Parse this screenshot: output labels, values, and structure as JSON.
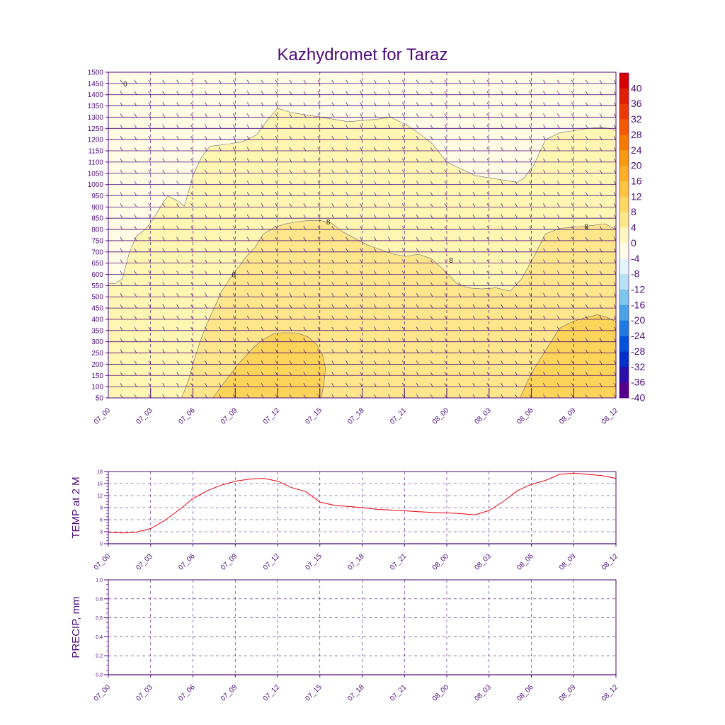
{
  "figure": {
    "title": "Kazhydromet for Taraz",
    "colors": {
      "axis": "#4b0a7a",
      "temp_line": "#e8000b",
      "grid": "#4b0a7a"
    }
  },
  "chart_data": [
    {
      "type": "heatmap",
      "name": "cross-section",
      "title": "Kazhydromet for Taraz",
      "x_tick_labels": [
        "07_00",
        "07_03",
        "07_06",
        "07_09",
        "07_12",
        "07_15",
        "07_18",
        "07_21",
        "08_00",
        "08_03",
        "08_06",
        "08_09",
        "08_12"
      ],
      "x_hours": [
        0,
        3,
        6,
        9,
        12,
        15,
        18,
        21,
        24,
        27,
        30,
        33,
        36
      ],
      "xlim": [
        0,
        36
      ],
      "y_tick_labels": [
        "50",
        "100",
        "150",
        "200",
        "250",
        "300",
        "350",
        "400",
        "450",
        "500",
        "550",
        "600",
        "650",
        "700",
        "750",
        "800",
        "850",
        "900",
        "950",
        "1000",
        "1050",
        "1100",
        "1150",
        "1200",
        "1250",
        "1300",
        "1350",
        "1400",
        "1450",
        "1500"
      ],
      "ylim": [
        50,
        1500
      ],
      "colorbar_labels": [
        "40",
        "36",
        "32",
        "28",
        "24",
        "20",
        "16",
        "12",
        "8",
        "4",
        "0",
        "-4",
        "-8",
        "-12",
        "-16",
        "-20",
        "-24",
        "-28",
        "-32",
        "-36",
        "-40"
      ],
      "colorbar_colors": [
        "#d40000",
        "#e01e00",
        "#ea3a00",
        "#f25a00",
        "#f77a00",
        "#fa9a10",
        "#fcb025",
        "#fdc440",
        "#fed860",
        "#fee98a",
        "#fff6c0",
        "#fffbe4",
        "#e3f4fb",
        "#b8e3f5",
        "#7fc6ee",
        "#4aa3e6",
        "#1e7be0",
        "#0052d8",
        "#0030c8",
        "#2a10a8",
        "#55008a"
      ],
      "contour_labels": [
        "8",
        "8",
        "8",
        "8",
        "0"
      ],
      "contours": [
        {
          "level": 4,
          "color": "#fff6b4",
          "x": [
            0,
            0.5,
            1,
            1.5,
            2,
            2.6,
            3,
            3.7,
            4.2,
            4.8,
            5.4,
            5.7,
            6,
            6.6,
            7.2,
            8.5,
            9.5,
            10.5,
            11.2,
            12,
            13,
            14,
            15,
            16,
            17,
            18,
            19,
            20,
            21,
            22,
            23,
            24,
            25,
            26,
            27,
            28,
            29,
            29.5,
            30.2,
            31,
            32,
            33,
            34,
            34.8,
            35.5,
            36
          ],
          "y": [
            560,
            560,
            580,
            700,
            770,
            800,
            830,
            900,
            950,
            930,
            905,
            970,
            1040,
            1120,
            1170,
            1180,
            1190,
            1220,
            1280,
            1340,
            1320,
            1310,
            1300,
            1290,
            1280,
            1285,
            1290,
            1300,
            1270,
            1230,
            1180,
            1100,
            1070,
            1040,
            1030,
            1020,
            1010,
            1030,
            1090,
            1200,
            1230,
            1240,
            1250,
            1255,
            1250,
            1240
          ]
        },
        {
          "level": 8,
          "color": "#fee68c",
          "x": [
            5.2,
            5.7,
            6,
            6.5,
            7,
            7.5,
            8,
            8.6,
            9.2,
            9.8,
            10.4,
            11,
            11.8,
            12.6,
            13.4,
            14.2,
            15,
            15.8,
            16.6,
            17.5,
            18.4,
            19.3,
            20.2,
            21.1,
            22,
            22.9,
            23.8,
            24.7,
            25.5,
            26.5,
            27.5,
            28.5,
            29.3,
            30.2,
            31,
            32,
            33,
            34,
            34.6,
            35.2,
            36
          ],
          "y": [
            50,
            130,
            200,
            300,
            380,
            450,
            520,
            580,
            630,
            680,
            720,
            780,
            810,
            825,
            835,
            840,
            840,
            830,
            790,
            760,
            730,
            710,
            690,
            680,
            690,
            670,
            620,
            560,
            540,
            535,
            540,
            525,
            580,
            680,
            780,
            805,
            810,
            815,
            820,
            825,
            800
          ]
        },
        {
          "level": 12,
          "color": "#fdd45a",
          "x": [
            7.4,
            8,
            8.6,
            9.2,
            9.8,
            10.4,
            11,
            11.7,
            12.4,
            13,
            13.6,
            14.2,
            14.8,
            15.2,
            15.4,
            15.3,
            15.1,
            29.2,
            29.7,
            30.2,
            30.8,
            31.4,
            32,
            32.6,
            33.4,
            34,
            34.7,
            35.3,
            36
          ],
          "y": [
            50,
            100,
            150,
            200,
            240,
            280,
            310,
            335,
            340,
            340,
            335,
            320,
            285,
            240,
            180,
            120,
            50,
            50,
            120,
            180,
            240,
            300,
            360,
            380,
            400,
            410,
            420,
            410,
            390
          ]
        }
      ],
      "wind_rows": [
        50,
        100,
        150,
        200,
        250,
        300,
        350,
        400,
        450,
        500,
        550,
        600,
        650,
        700,
        750,
        800,
        850,
        900,
        950,
        1000,
        1050,
        1100,
        1150,
        1200,
        1250,
        1300,
        1350,
        1400,
        1450,
        1500
      ],
      "wind_cols_step_hours": 1
    },
    {
      "type": "line",
      "name": "temperature",
      "ylabel": "TEMP at 2 M",
      "x_tick_labels": [
        "07_00",
        "07_03",
        "07_06",
        "07_09",
        "07_12",
        "07_15",
        "07_18",
        "07_21",
        "08_00",
        "08_03",
        "08_06",
        "08_09",
        "08_12"
      ],
      "y_tick_labels": [
        "0",
        "3",
        "6",
        "9",
        "12",
        "15",
        "18"
      ],
      "ylim": [
        0,
        18
      ],
      "x": [
        0,
        1,
        2,
        3,
        4,
        5,
        6,
        7,
        8,
        9,
        10,
        11,
        12,
        13,
        14,
        15,
        16,
        17,
        18,
        19,
        20,
        21,
        22,
        23,
        24,
        25,
        26,
        27,
        28,
        29,
        30,
        31,
        32,
        33,
        34,
        35,
        36
      ],
      "values": [
        2.8,
        2.7,
        2.9,
        3.8,
        5.8,
        8.4,
        11.3,
        13.2,
        14.6,
        15.6,
        16.1,
        16.3,
        15.6,
        14.0,
        13.0,
        10.4,
        9.6,
        9.3,
        9.0,
        8.6,
        8.4,
        8.2,
        8.0,
        7.8,
        7.7,
        7.5,
        7.2,
        8.3,
        10.5,
        13.2,
        14.8,
        15.8,
        17.3,
        17.6,
        17.3,
        17.0,
        16.3
      ]
    },
    {
      "type": "line",
      "name": "precipitation",
      "ylabel": "PRECIP, mm",
      "x_tick_labels": [
        "07_00",
        "07_03",
        "07_06",
        "07_09",
        "07_12",
        "07_15",
        "07_18",
        "07_21",
        "08_00",
        "08_03",
        "08_06",
        "08_09",
        "08_12"
      ],
      "y_tick_labels": [
        "0.0",
        "0.2",
        "0.4",
        "0.6",
        "0.8",
        "1.0"
      ],
      "ylim": [
        0,
        1
      ],
      "x": [],
      "values": []
    }
  ]
}
